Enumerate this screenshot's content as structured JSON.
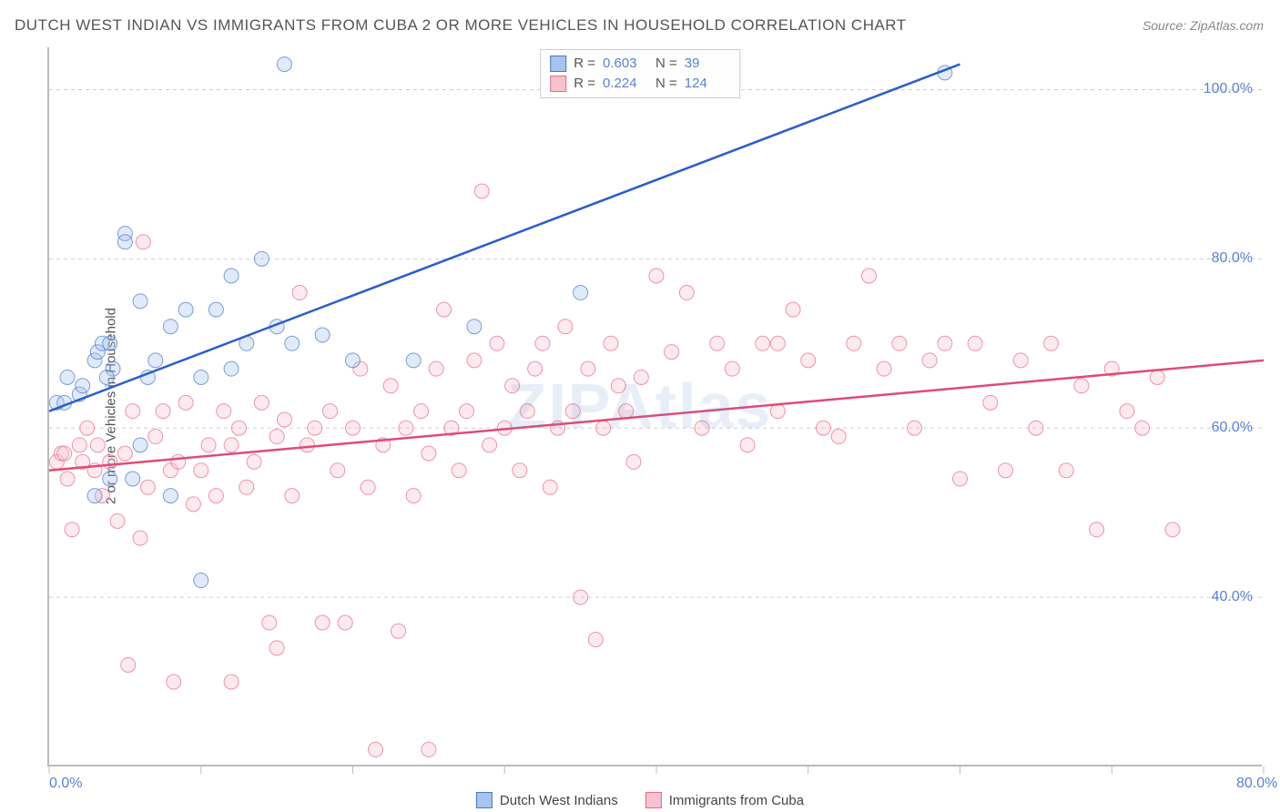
{
  "title": "DUTCH WEST INDIAN VS IMMIGRANTS FROM CUBA 2 OR MORE VEHICLES IN HOUSEHOLD CORRELATION CHART",
  "source": "Source: ZipAtlas.com",
  "watermark": "ZIPAtlas",
  "y_axis_label": "2 or more Vehicles in Household",
  "chart": {
    "type": "scatter",
    "xlim": [
      0,
      80
    ],
    "ylim": [
      20,
      105
    ],
    "x_ticks": [
      0,
      10,
      20,
      30,
      40,
      50,
      60,
      70,
      80
    ],
    "x_tick_labels": {
      "0": "0.0%",
      "80": "80.0%"
    },
    "y_ticks": [
      40,
      60,
      80,
      100
    ],
    "y_tick_labels": {
      "40": "40.0%",
      "60": "60.0%",
      "80": "80.0%",
      "100": "100.0%"
    },
    "grid_color": "#d0d0d0",
    "background_color": "#ffffff",
    "axis_color": "#bbbbbb",
    "marker_radius": 8,
    "marker_opacity": 0.35,
    "series": [
      {
        "name": "Dutch West Indians",
        "color_fill": "#a7c4ec",
        "color_stroke": "#4a78c8",
        "r_label": "R =",
        "r_value": "0.603",
        "n_label": "N =",
        "n_value": "39",
        "trend": {
          "x1": 0,
          "y1": 62,
          "x2": 60,
          "y2": 103,
          "stroke": "#2a5fc9",
          "width": 2.5
        },
        "points": [
          [
            0.5,
            63
          ],
          [
            1,
            63
          ],
          [
            1.2,
            66
          ],
          [
            2,
            64
          ],
          [
            2.2,
            65
          ],
          [
            3,
            68
          ],
          [
            3.2,
            69
          ],
          [
            3.5,
            70
          ],
          [
            4,
            70
          ],
          [
            4.2,
            67
          ],
          [
            5,
            83
          ],
          [
            5.5,
            54
          ],
          [
            6,
            75
          ],
          [
            6.5,
            66
          ],
          [
            7,
            68
          ],
          [
            8,
            72
          ],
          [
            9,
            74
          ],
          [
            10,
            66
          ],
          [
            11,
            74
          ],
          [
            12,
            78
          ],
          [
            13,
            70
          ],
          [
            14,
            80
          ],
          [
            15,
            72
          ],
          [
            15.5,
            103
          ],
          [
            18,
            71
          ],
          [
            10,
            42
          ],
          [
            3,
            52
          ],
          [
            4,
            54
          ],
          [
            6,
            58
          ],
          [
            8,
            52
          ],
          [
            12,
            67
          ],
          [
            16,
            70
          ],
          [
            20,
            68
          ],
          [
            24,
            68
          ],
          [
            28,
            72
          ],
          [
            35,
            76
          ],
          [
            59,
            102
          ],
          [
            5,
            82
          ],
          [
            3.8,
            66
          ]
        ]
      },
      {
        "name": "Immigrants from Cuba",
        "color_fill": "#f6c2cd",
        "color_stroke": "#e76a8a",
        "r_label": "R =",
        "r_value": "0.224",
        "n_label": "N =",
        "n_value": "124",
        "trend": {
          "x1": 0,
          "y1": 55,
          "x2": 80,
          "y2": 68,
          "stroke": "#e04a78",
          "width": 2.5
        },
        "points": [
          [
            0.5,
            56
          ],
          [
            0.8,
            57
          ],
          [
            1,
            57
          ],
          [
            1.2,
            54
          ],
          [
            1.5,
            48
          ],
          [
            2,
            58
          ],
          [
            2.2,
            56
          ],
          [
            2.5,
            60
          ],
          [
            3,
            55
          ],
          [
            3.2,
            58
          ],
          [
            3.5,
            52
          ],
          [
            4,
            56
          ],
          [
            4.5,
            49
          ],
          [
            5,
            57
          ],
          [
            5.2,
            32
          ],
          [
            5.5,
            62
          ],
          [
            6,
            47
          ],
          [
            6.2,
            82
          ],
          [
            6.5,
            53
          ],
          [
            7,
            59
          ],
          [
            7.5,
            62
          ],
          [
            8,
            55
          ],
          [
            8.2,
            30
          ],
          [
            8.5,
            56
          ],
          [
            9,
            63
          ],
          [
            9.5,
            51
          ],
          [
            10,
            55
          ],
          [
            10.5,
            58
          ],
          [
            11,
            52
          ],
          [
            11.5,
            62
          ],
          [
            12,
            58
          ],
          [
            12.5,
            60
          ],
          [
            13,
            53
          ],
          [
            13.5,
            56
          ],
          [
            14,
            63
          ],
          [
            14.5,
            37
          ],
          [
            15,
            59
          ],
          [
            15.5,
            61
          ],
          [
            16,
            52
          ],
          [
            16.5,
            76
          ],
          [
            17,
            58
          ],
          [
            17.5,
            60
          ],
          [
            18,
            37
          ],
          [
            18.5,
            62
          ],
          [
            19,
            55
          ],
          [
            19.5,
            37
          ],
          [
            20,
            60
          ],
          [
            20.5,
            67
          ],
          [
            21,
            53
          ],
          [
            21.5,
            22
          ],
          [
            22,
            58
          ],
          [
            22.5,
            65
          ],
          [
            23,
            36
          ],
          [
            23.5,
            60
          ],
          [
            24,
            52
          ],
          [
            24.5,
            62
          ],
          [
            25,
            57
          ],
          [
            25.5,
            67
          ],
          [
            26,
            74
          ],
          [
            26.5,
            60
          ],
          [
            27,
            55
          ],
          [
            27.5,
            62
          ],
          [
            28,
            68
          ],
          [
            28.5,
            88
          ],
          [
            29,
            58
          ],
          [
            29.5,
            70
          ],
          [
            30,
            60
          ],
          [
            30.5,
            65
          ],
          [
            31,
            55
          ],
          [
            31.5,
            62
          ],
          [
            32,
            67
          ],
          [
            32.5,
            70
          ],
          [
            33,
            53
          ],
          [
            33.5,
            60
          ],
          [
            34,
            72
          ],
          [
            34.5,
            62
          ],
          [
            35,
            40
          ],
          [
            35.5,
            67
          ],
          [
            36,
            35
          ],
          [
            36.5,
            60
          ],
          [
            37,
            70
          ],
          [
            37.5,
            65
          ],
          [
            38,
            62
          ],
          [
            38.5,
            56
          ],
          [
            39,
            66
          ],
          [
            40,
            78
          ],
          [
            41,
            69
          ],
          [
            42,
            76
          ],
          [
            43,
            60
          ],
          [
            44,
            70
          ],
          [
            45,
            67
          ],
          [
            46,
            58
          ],
          [
            47,
            70
          ],
          [
            48,
            62
          ],
          [
            49,
            74
          ],
          [
            50,
            68
          ],
          [
            51,
            60
          ],
          [
            52,
            59
          ],
          [
            53,
            70
          ],
          [
            54,
            78
          ],
          [
            55,
            67
          ],
          [
            56,
            70
          ],
          [
            57,
            60
          ],
          [
            58,
            68
          ],
          [
            59,
            70
          ],
          [
            60,
            54
          ],
          [
            61,
            70
          ],
          [
            62,
            63
          ],
          [
            63,
            55
          ],
          [
            64,
            68
          ],
          [
            65,
            60
          ],
          [
            66,
            70
          ],
          [
            67,
            55
          ],
          [
            68,
            65
          ],
          [
            69,
            48
          ],
          [
            70,
            67
          ],
          [
            71,
            62
          ],
          [
            72,
            60
          ],
          [
            73,
            66
          ],
          [
            74,
            48
          ],
          [
            25,
            22
          ],
          [
            12,
            30
          ],
          [
            15,
            34
          ],
          [
            48,
            70
          ]
        ]
      }
    ]
  },
  "legend_bottom": [
    {
      "label": "Dutch West Indians",
      "fill": "#a7c4ec",
      "stroke": "#4a78c8"
    },
    {
      "label": "Immigrants from Cuba",
      "fill": "#f6c2cd",
      "stroke": "#e76a8a"
    }
  ],
  "colors": {
    "title_text": "#555555",
    "source_text": "#888888",
    "tick_text": "#5b7fd6"
  }
}
